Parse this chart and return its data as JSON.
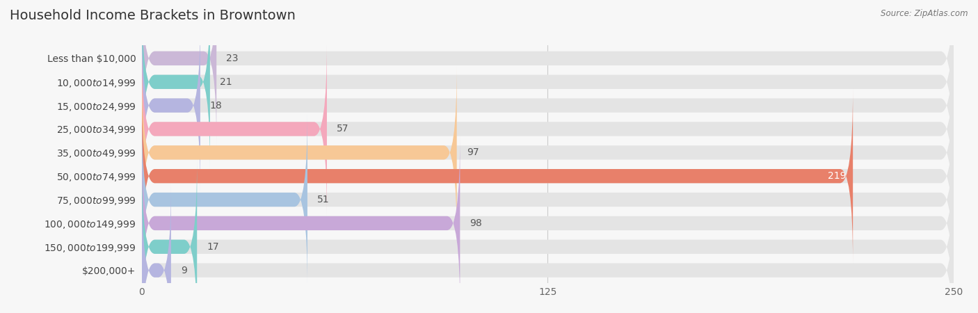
{
  "title": "Household Income Brackets in Browntown",
  "source": "Source: ZipAtlas.com",
  "categories": [
    "Less than $10,000",
    "$10,000 to $14,999",
    "$15,000 to $24,999",
    "$25,000 to $34,999",
    "$35,000 to $49,999",
    "$50,000 to $74,999",
    "$75,000 to $99,999",
    "$100,000 to $149,999",
    "$150,000 to $199,999",
    "$200,000+"
  ],
  "values": [
    23,
    21,
    18,
    57,
    97,
    219,
    51,
    98,
    17,
    9
  ],
  "bar_colors": [
    "#cbb8d7",
    "#7ececa",
    "#b5b5e0",
    "#f4a8bc",
    "#f7c896",
    "#e8806a",
    "#a8c4e0",
    "#c8a8d8",
    "#7ececa",
    "#b5b5e0"
  ],
  "xlim": [
    0,
    250
  ],
  "xticks": [
    0,
    125,
    250
  ],
  "background_color": "#f7f7f7",
  "bar_background_color": "#e4e4e4",
  "title_fontsize": 14,
  "label_fontsize": 10,
  "value_fontsize": 10,
  "bar_height": 0.6,
  "white_label_threshold": 200
}
